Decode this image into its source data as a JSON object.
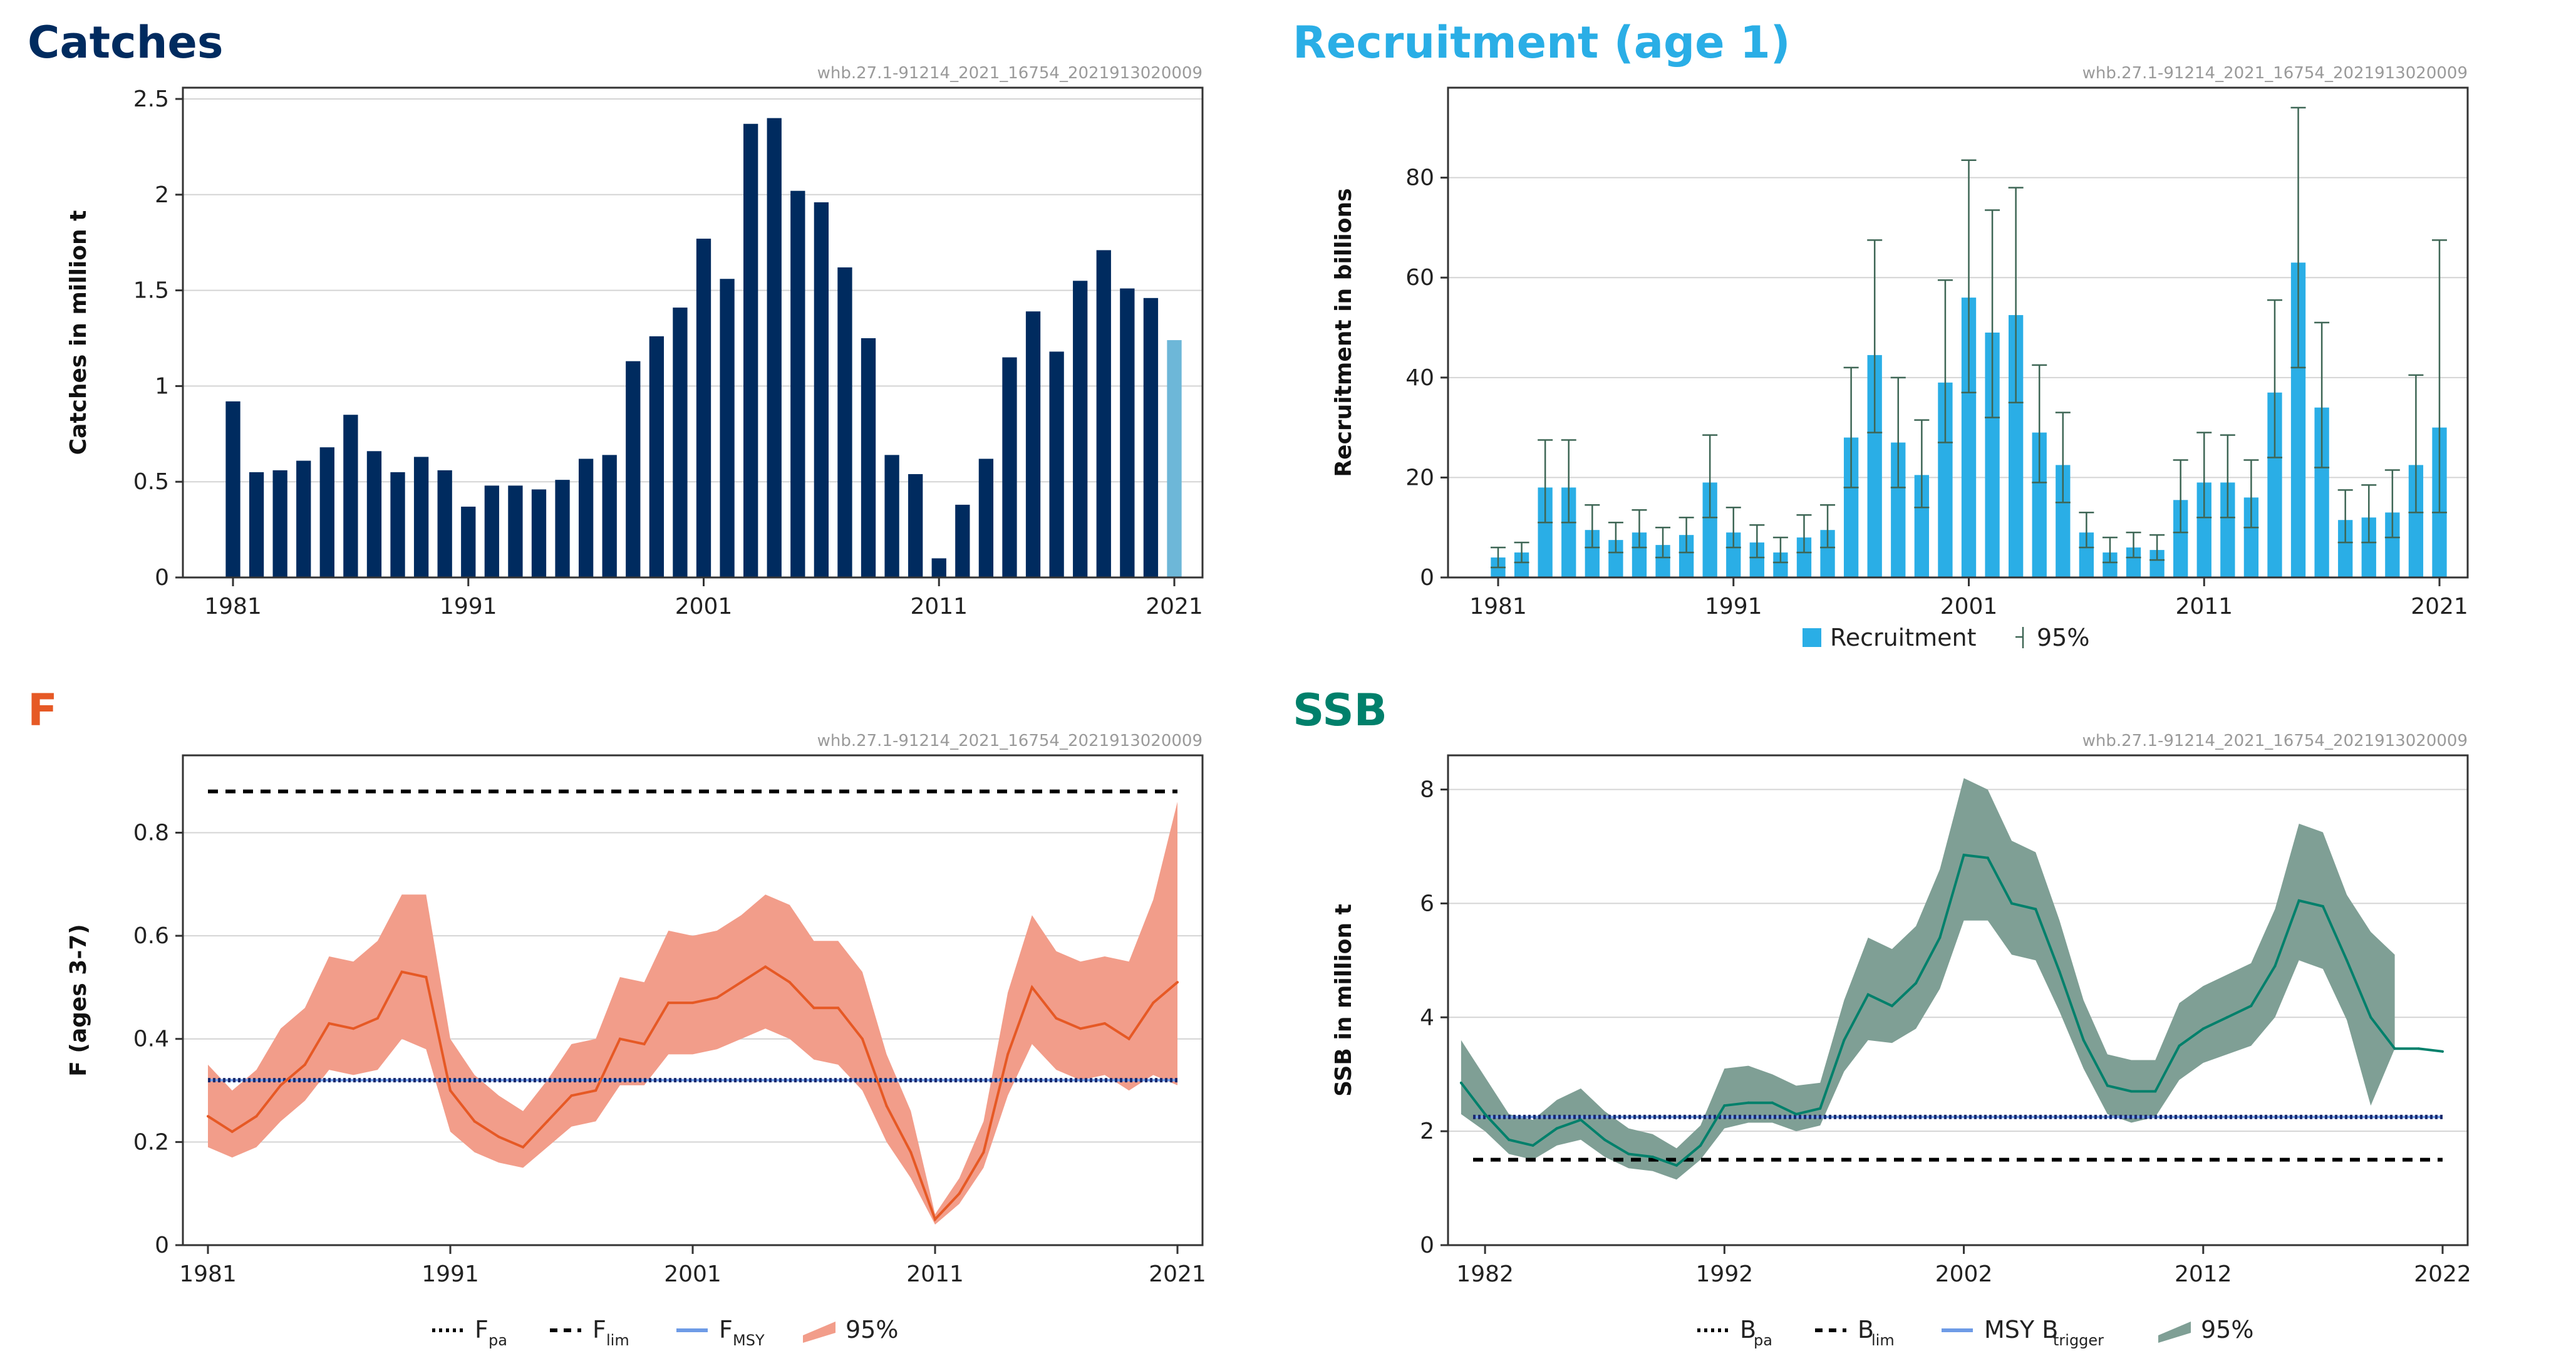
{
  "chart_data": [
    {
      "type": "bar",
      "title": "Catches",
      "source": "whb.27.1-91214_2021_16754_2021913020009",
      "xlabel": "",
      "ylabel": "Catches in million t",
      "ylim": [
        0,
        2.5
      ],
      "yticks": [
        "0",
        "0.5",
        "1",
        "1.5",
        "2",
        "2.5"
      ],
      "xticks": [
        "1981",
        "1991",
        "2001",
        "2011",
        "2021"
      ],
      "categories": [
        "1981",
        "1982",
        "1983",
        "1984",
        "1985",
        "1986",
        "1987",
        "1988",
        "1989",
        "1990",
        "1991",
        "1992",
        "1993",
        "1994",
        "1995",
        "1996",
        "1997",
        "1998",
        "1999",
        "2000",
        "2001",
        "2002",
        "2003",
        "2004",
        "2005",
        "2006",
        "2007",
        "2008",
        "2009",
        "2010",
        "2011",
        "2012",
        "2013",
        "2014",
        "2015",
        "2016",
        "2017",
        "2018",
        "2019",
        "2020",
        "2021"
      ],
      "values": [
        0.92,
        0.55,
        0.56,
        0.61,
        0.68,
        0.85,
        0.66,
        0.55,
        0.63,
        0.56,
        0.37,
        0.48,
        0.48,
        0.46,
        0.51,
        0.62,
        0.64,
        1.13,
        1.26,
        1.41,
        1.77,
        1.56,
        2.37,
        2.4,
        2.02,
        1.96,
        1.62,
        1.25,
        0.64,
        0.54,
        0.1,
        0.38,
        0.62,
        1.15,
        1.39,
        1.18,
        1.55,
        1.71,
        1.51,
        1.46,
        1.24
      ],
      "colors": {
        "main": "#002b5f",
        "last": "#6db7d8",
        "title": "#002b5f"
      }
    },
    {
      "type": "bar",
      "title": "Recruitment (age 1)",
      "source": "whb.27.1-91214_2021_16754_2021913020009",
      "xlabel": "",
      "ylabel": "Recruitment in billions",
      "ylim": [
        0,
        98
      ],
      "yticks": [
        "0",
        "20",
        "40",
        "60",
        "80"
      ],
      "xticks": [
        "1981",
        "1991",
        "2001",
        "2011",
        "2021"
      ],
      "categories": [
        "1981",
        "1982",
        "1983",
        "1984",
        "1985",
        "1986",
        "1987",
        "1988",
        "1989",
        "1990",
        "1991",
        "1992",
        "1993",
        "1994",
        "1995",
        "1996",
        "1997",
        "1998",
        "1999",
        "2000",
        "2001",
        "2002",
        "2003",
        "2004",
        "2005",
        "2006",
        "2007",
        "2008",
        "2009",
        "2010",
        "2011",
        "2012",
        "2013",
        "2014",
        "2015",
        "2016",
        "2017",
        "2018",
        "2019",
        "2020",
        "2021"
      ],
      "values": [
        4,
        5,
        18,
        18,
        9.5,
        7.5,
        9,
        6.5,
        8.5,
        19,
        9,
        7,
        5,
        8,
        9.5,
        28,
        44.5,
        27,
        20.5,
        39,
        56,
        49,
        52.5,
        29,
        22.5,
        9,
        5,
        6,
        5.5,
        15.5,
        19,
        19,
        16,
        37,
        63,
        34,
        11.5,
        12,
        13,
        22.5,
        30
      ],
      "lower": [
        2,
        3,
        11,
        11,
        6,
        5,
        6,
        4,
        5,
        12,
        6,
        4,
        3,
        5,
        6,
        18,
        29,
        18,
        14,
        27,
        37,
        32,
        35,
        19,
        15,
        6,
        3,
        4,
        3.5,
        9,
        12,
        12,
        10,
        24,
        42,
        22,
        7,
        7,
        8,
        13,
        13
      ],
      "upper": [
        6,
        7,
        27.5,
        27.5,
        14.5,
        11,
        13.5,
        10,
        12,
        28.5,
        14,
        10.5,
        8,
        12.5,
        14.5,
        42,
        67.5,
        40,
        31.5,
        59.5,
        83.5,
        73.5,
        78,
        42.5,
        33,
        13,
        8,
        9,
        8.5,
        23.5,
        29,
        28.5,
        23.5,
        55.5,
        94,
        51,
        17.5,
        18.5,
        21.5,
        40.5,
        67.5
      ],
      "legend": {
        "bar_label": "Recruitment",
        "ci_label": "95%"
      },
      "colors": {
        "main": "#2aaee6",
        "ci": "#3e6655",
        "title": "#2aaee6"
      }
    },
    {
      "type": "line",
      "title": "F",
      "source": "whb.27.1-91214_2021_16754_2021913020009",
      "xlabel": "",
      "ylabel": "F (ages 3-7)",
      "ylim": [
        0,
        0.95
      ],
      "yticks": [
        "0",
        "0.2",
        "0.4",
        "0.6",
        "0.8"
      ],
      "xticks": [
        "1981",
        "1991",
        "2001",
        "2011",
        "2021"
      ],
      "x": [
        1981,
        1982,
        1983,
        1984,
        1985,
        1986,
        1987,
        1988,
        1989,
        1990,
        1991,
        1992,
        1993,
        1994,
        1995,
        1996,
        1997,
        1998,
        1999,
        2000,
        2001,
        2002,
        2003,
        2004,
        2005,
        2006,
        2007,
        2008,
        2009,
        2010,
        2011,
        2012,
        2013,
        2014,
        2015,
        2016,
        2017,
        2018,
        2019,
        2020,
        2021
      ],
      "series": [
        {
          "name": "F",
          "values": [
            0.25,
            0.22,
            0.25,
            0.31,
            0.35,
            0.43,
            0.42,
            0.44,
            0.53,
            0.52,
            0.3,
            0.24,
            0.21,
            0.19,
            0.24,
            0.29,
            0.3,
            0.4,
            0.39,
            0.47,
            0.47,
            0.48,
            0.51,
            0.54,
            0.51,
            0.46,
            0.46,
            0.4,
            0.27,
            0.18,
            0.05,
            0.1,
            0.18,
            0.37,
            0.5,
            0.44,
            0.42,
            0.43,
            0.4,
            0.47,
            0.51
          ]
        },
        {
          "name": "95% lower",
          "values": [
            0.19,
            0.17,
            0.19,
            0.24,
            0.28,
            0.34,
            0.33,
            0.34,
            0.4,
            0.38,
            0.22,
            0.18,
            0.16,
            0.15,
            0.19,
            0.23,
            0.24,
            0.31,
            0.31,
            0.37,
            0.37,
            0.38,
            0.4,
            0.42,
            0.4,
            0.36,
            0.35,
            0.3,
            0.2,
            0.13,
            0.04,
            0.08,
            0.15,
            0.29,
            0.39,
            0.34,
            0.32,
            0.33,
            0.3,
            0.33,
            0.31
          ]
        },
        {
          "name": "95% upper",
          "values": [
            0.35,
            0.3,
            0.34,
            0.42,
            0.46,
            0.56,
            0.55,
            0.59,
            0.68,
            0.68,
            0.4,
            0.33,
            0.29,
            0.26,
            0.32,
            0.39,
            0.4,
            0.52,
            0.51,
            0.61,
            0.6,
            0.61,
            0.64,
            0.68,
            0.66,
            0.59,
            0.59,
            0.53,
            0.37,
            0.26,
            0.06,
            0.13,
            0.24,
            0.49,
            0.64,
            0.57,
            0.55,
            0.56,
            0.55,
            0.67,
            0.86
          ]
        }
      ],
      "refs": {
        "fpa": 0.32,
        "flim": 0.88,
        "fmsy": 0.32
      },
      "legend": [
        {
          "style": "dotted",
          "label": "F",
          "sub": "pa"
        },
        {
          "style": "dashed",
          "label": "F",
          "sub": "lim"
        },
        {
          "style": "solid",
          "label": "F",
          "sub": "MSY"
        },
        {
          "style": "band",
          "label": "95%",
          "sub": ""
        }
      ],
      "colors": {
        "line": "#e65925",
        "band": "#f29d8a",
        "ref": "#000000",
        "msy": "#6e9be6",
        "dotted": "#1a2a6e",
        "title": "#e65925"
      }
    },
    {
      "type": "line",
      "title": "SSB",
      "source": "whb.27.1-91214_2021_16754_2021913020009",
      "xlabel": "",
      "ylabel": "SSB in million t",
      "ylim": [
        0,
        8.6
      ],
      "yticks": [
        "0",
        "2",
        "4",
        "6",
        "8"
      ],
      "xticks": [
        "1982",
        "1992",
        "2002",
        "2012",
        "2022"
      ],
      "xrange": [
        1981.5,
        2022
      ],
      "x": [
        1981,
        1982,
        1983,
        1984,
        1985,
        1986,
        1987,
        1988,
        1989,
        1990,
        1991,
        1992,
        1993,
        1994,
        1995,
        1996,
        1997,
        1998,
        1999,
        2000,
        2001,
        2002,
        2003,
        2004,
        2005,
        2006,
        2007,
        2008,
        2009,
        2010,
        2011,
        2012,
        2013,
        2014,
        2015,
        2016,
        2017,
        2018,
        2019,
        2020,
        2021,
        2022
      ],
      "series": [
        {
          "name": "SSB",
          "values": [
            2.85,
            2.3,
            1.85,
            1.75,
            2.05,
            2.2,
            1.85,
            1.6,
            1.55,
            1.4,
            1.75,
            2.45,
            2.5,
            2.5,
            2.3,
            2.4,
            3.6,
            4.4,
            4.2,
            4.6,
            5.4,
            6.85,
            6.8,
            6.0,
            5.9,
            4.8,
            3.6,
            2.8,
            2.7,
            2.7,
            3.5,
            3.8,
            4.0,
            4.2,
            4.9,
            6.05,
            5.95,
            5.0,
            4.0,
            3.45,
            3.45,
            3.4
          ]
        },
        {
          "name": "95% lower",
          "values": [
            2.3,
            2.0,
            1.6,
            1.5,
            1.75,
            1.85,
            1.55,
            1.35,
            1.3,
            1.15,
            1.5,
            2.05,
            2.15,
            2.15,
            2.0,
            2.1,
            3.05,
            3.6,
            3.55,
            3.8,
            4.5,
            5.7,
            5.7,
            5.1,
            5.0,
            4.1,
            3.1,
            2.3,
            2.15,
            2.25,
            2.9,
            3.2,
            3.35,
            3.5,
            4.0,
            5.0,
            4.85,
            3.95,
            2.45,
            null,
            null,
            null
          ]
        },
        {
          "name": "95% upper",
          "values": [
            3.6,
            2.95,
            2.3,
            2.2,
            2.55,
            2.75,
            2.35,
            2.05,
            1.95,
            1.7,
            2.1,
            3.1,
            3.15,
            3.0,
            2.8,
            2.85,
            4.3,
            5.4,
            5.2,
            5.6,
            6.6,
            8.2,
            8.0,
            7.1,
            6.9,
            5.7,
            4.3,
            3.35,
            3.25,
            3.25,
            4.25,
            4.55,
            4.75,
            4.95,
            5.9,
            7.4,
            7.25,
            6.15,
            5.5,
            5.1,
            null,
            null
          ]
        }
      ],
      "refs": {
        "bpa": 2.25,
        "blim": 1.5,
        "msy_btrigger": 2.25
      },
      "legend": [
        {
          "style": "dotted",
          "label": "B",
          "sub": "pa"
        },
        {
          "style": "dashed",
          "label": "B",
          "sub": "lim"
        },
        {
          "style": "solid",
          "label": "MSY B",
          "sub": "trigger"
        },
        {
          "style": "band",
          "label": "95%",
          "sub": ""
        }
      ],
      "colors": {
        "line": "#00806b",
        "band": "#7f9f95",
        "ref": "#000000",
        "msy": "#6e9be6",
        "dotted": "#1a2a6e",
        "title": "#00806b"
      }
    }
  ]
}
